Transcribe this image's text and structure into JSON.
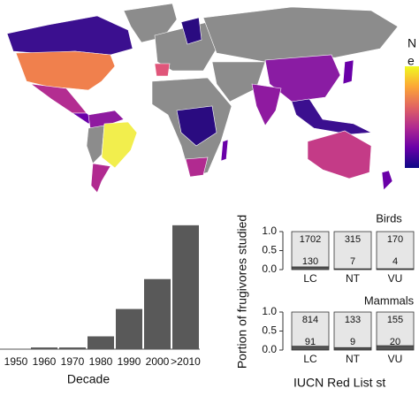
{
  "map": {
    "legend_title": [
      "N",
      "e"
    ]
  },
  "chart_data": [
    {
      "type": "bar",
      "categories": [
        "1950",
        "1960",
        "1970",
        "1980",
        "1990",
        "2000",
        ">2010"
      ],
      "values": [
        0,
        2,
        2,
        15,
        47,
        82,
        145
      ],
      "ylim": [
        0,
        150
      ],
      "color": "#595959",
      "xlabel": "Decade"
    },
    {
      "type": "portion",
      "title": "Birds",
      "ylabel": "Portion of frugivores studied",
      "categories": [
        "LC",
        "NT",
        "VU"
      ],
      "series": [
        {
          "color": "#555555",
          "values": [
            130,
            7,
            4
          ]
        },
        {
          "color": "#e6e6e6",
          "values": [
            1702,
            315,
            170
          ]
        }
      ],
      "ylim": [
        0,
        1
      ],
      "yticks": [
        {
          "value": 0,
          "label": "0.0"
        },
        {
          "value": 0.5,
          "label": "0.5"
        },
        {
          "value": 1,
          "label": "1.0"
        }
      ]
    },
    {
      "type": "portion",
      "title": "Mammals",
      "xlabel": "IUCN Red List st",
      "categories": [
        "LC",
        "NT",
        "VU"
      ],
      "series": [
        {
          "color": "#555555",
          "values": [
            91,
            9,
            20
          ]
        },
        {
          "color": "#e6e6e6",
          "values": [
            814,
            133,
            155
          ]
        }
      ],
      "ylim": [
        0,
        1
      ],
      "yticks": [
        {
          "value": 0,
          "label": "0.0"
        },
        {
          "value": 0.5,
          "label": "0.5"
        },
        {
          "value": 1,
          "label": "1.0"
        }
      ]
    }
  ]
}
